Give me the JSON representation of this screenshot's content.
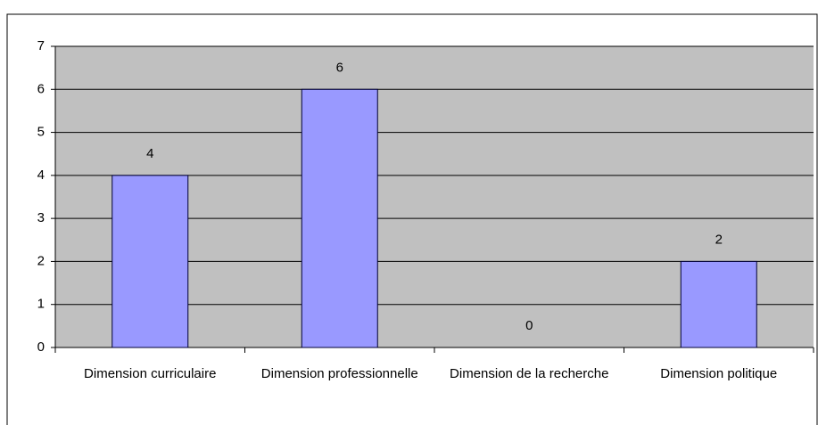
{
  "chart_data": {
    "type": "bar",
    "categories": [
      "Dimension curriculaire",
      "Dimension professionnelle",
      "Dimension de la recherche",
      "Dimension politique"
    ],
    "values": [
      4,
      6,
      0,
      2
    ],
    "color": "#9999ff",
    "ylim": [
      0,
      7
    ],
    "yticks": [
      0,
      1,
      2,
      3,
      4,
      5,
      6,
      7
    ],
    "grid": true
  }
}
